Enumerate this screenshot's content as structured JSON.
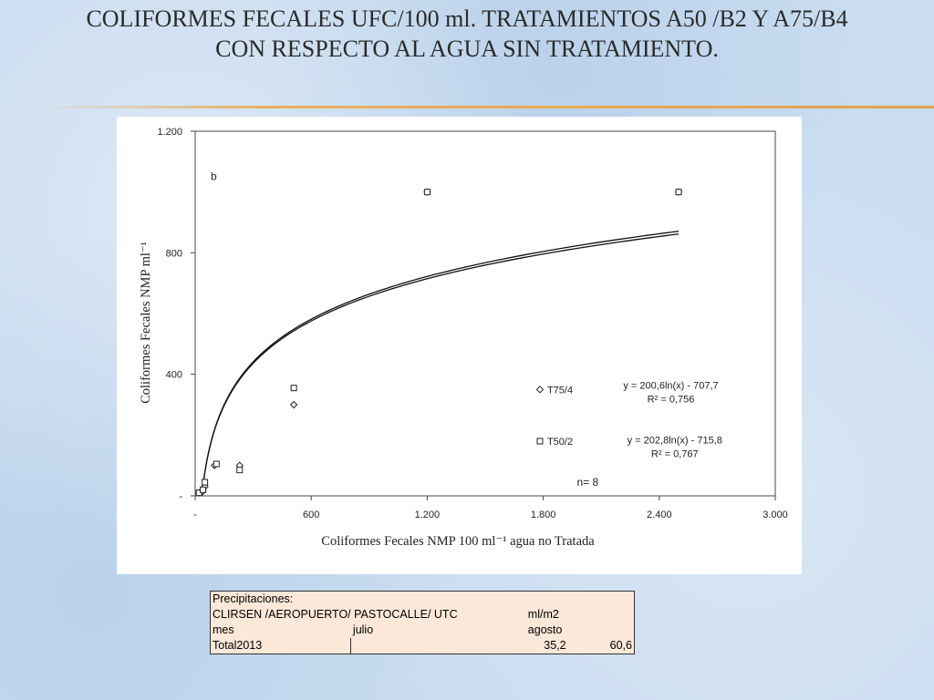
{
  "slide": {
    "title_line1": "COLIFORMES FECALES  UFC/100  ml. TRATAMIENTOS A50 /B2 Y A75/B4",
    "title_line2": "CON RESPECTO AL AGUA SIN TRATAMIENTO."
  },
  "chart_data": {
    "type": "scatter",
    "panel_letter": "b",
    "xlabel": "Coliformes Fecales NMP 100 ml⁻¹   agua no Tratada",
    "ylabel": "Coliformes Fecales NMP ml⁻¹",
    "xlim": [
      0,
      3000
    ],
    "ylim": [
      0,
      1200
    ],
    "x_ticks": [
      0,
      600,
      1200,
      1800,
      2400,
      3000
    ],
    "x_tick_labels": [
      "-",
      "600",
      "1.200",
      "1.800",
      "2.400",
      "3.000"
    ],
    "y_ticks": [
      0,
      400,
      800,
      1200
    ],
    "y_tick_labels": [
      "-",
      "400",
      "800",
      "1.200"
    ],
    "grid": false,
    "series": [
      {
        "name": "T75/4",
        "marker": "diamond",
        "points": [
          [
            20,
            10
          ],
          [
            40,
            15
          ],
          [
            50,
            30
          ],
          [
            100,
            100
          ],
          [
            230,
            100
          ],
          [
            510,
            300
          ],
          [
            1200,
            1000
          ],
          [
            2500,
            1000
          ]
        ],
        "trendline": {
          "equation": "y = 200,6ln(x) - 707,7",
          "r2": "R² = 0,756",
          "a": 200.6,
          "b": -707.7
        }
      },
      {
        "name": "T50/2",
        "marker": "square",
        "points": [
          [
            20,
            10
          ],
          [
            40,
            20
          ],
          [
            50,
            45
          ],
          [
            110,
            105
          ],
          [
            230,
            85
          ],
          [
            510,
            355
          ],
          [
            1200,
            1000
          ],
          [
            2500,
            1000
          ]
        ],
        "trendline": {
          "equation": "y = 202,8ln(x) - 715,8",
          "r2": "R² = 0,767",
          "a": 202.8,
          "b": -715.8
        }
      }
    ],
    "annotation_n": "n= 8"
  },
  "precip": {
    "rows": [
      [
        "Precipitaciones:",
        "",
        "",
        ""
      ],
      [
        "CLIRSEN /AEROPUERTO/ PASTOCALLE/ UTC",
        "",
        "ml/m2",
        ""
      ],
      [
        "mes",
        "julio",
        "agosto",
        ""
      ],
      [
        "Total2013",
        "",
        "35,2",
        "60,6"
      ]
    ]
  }
}
